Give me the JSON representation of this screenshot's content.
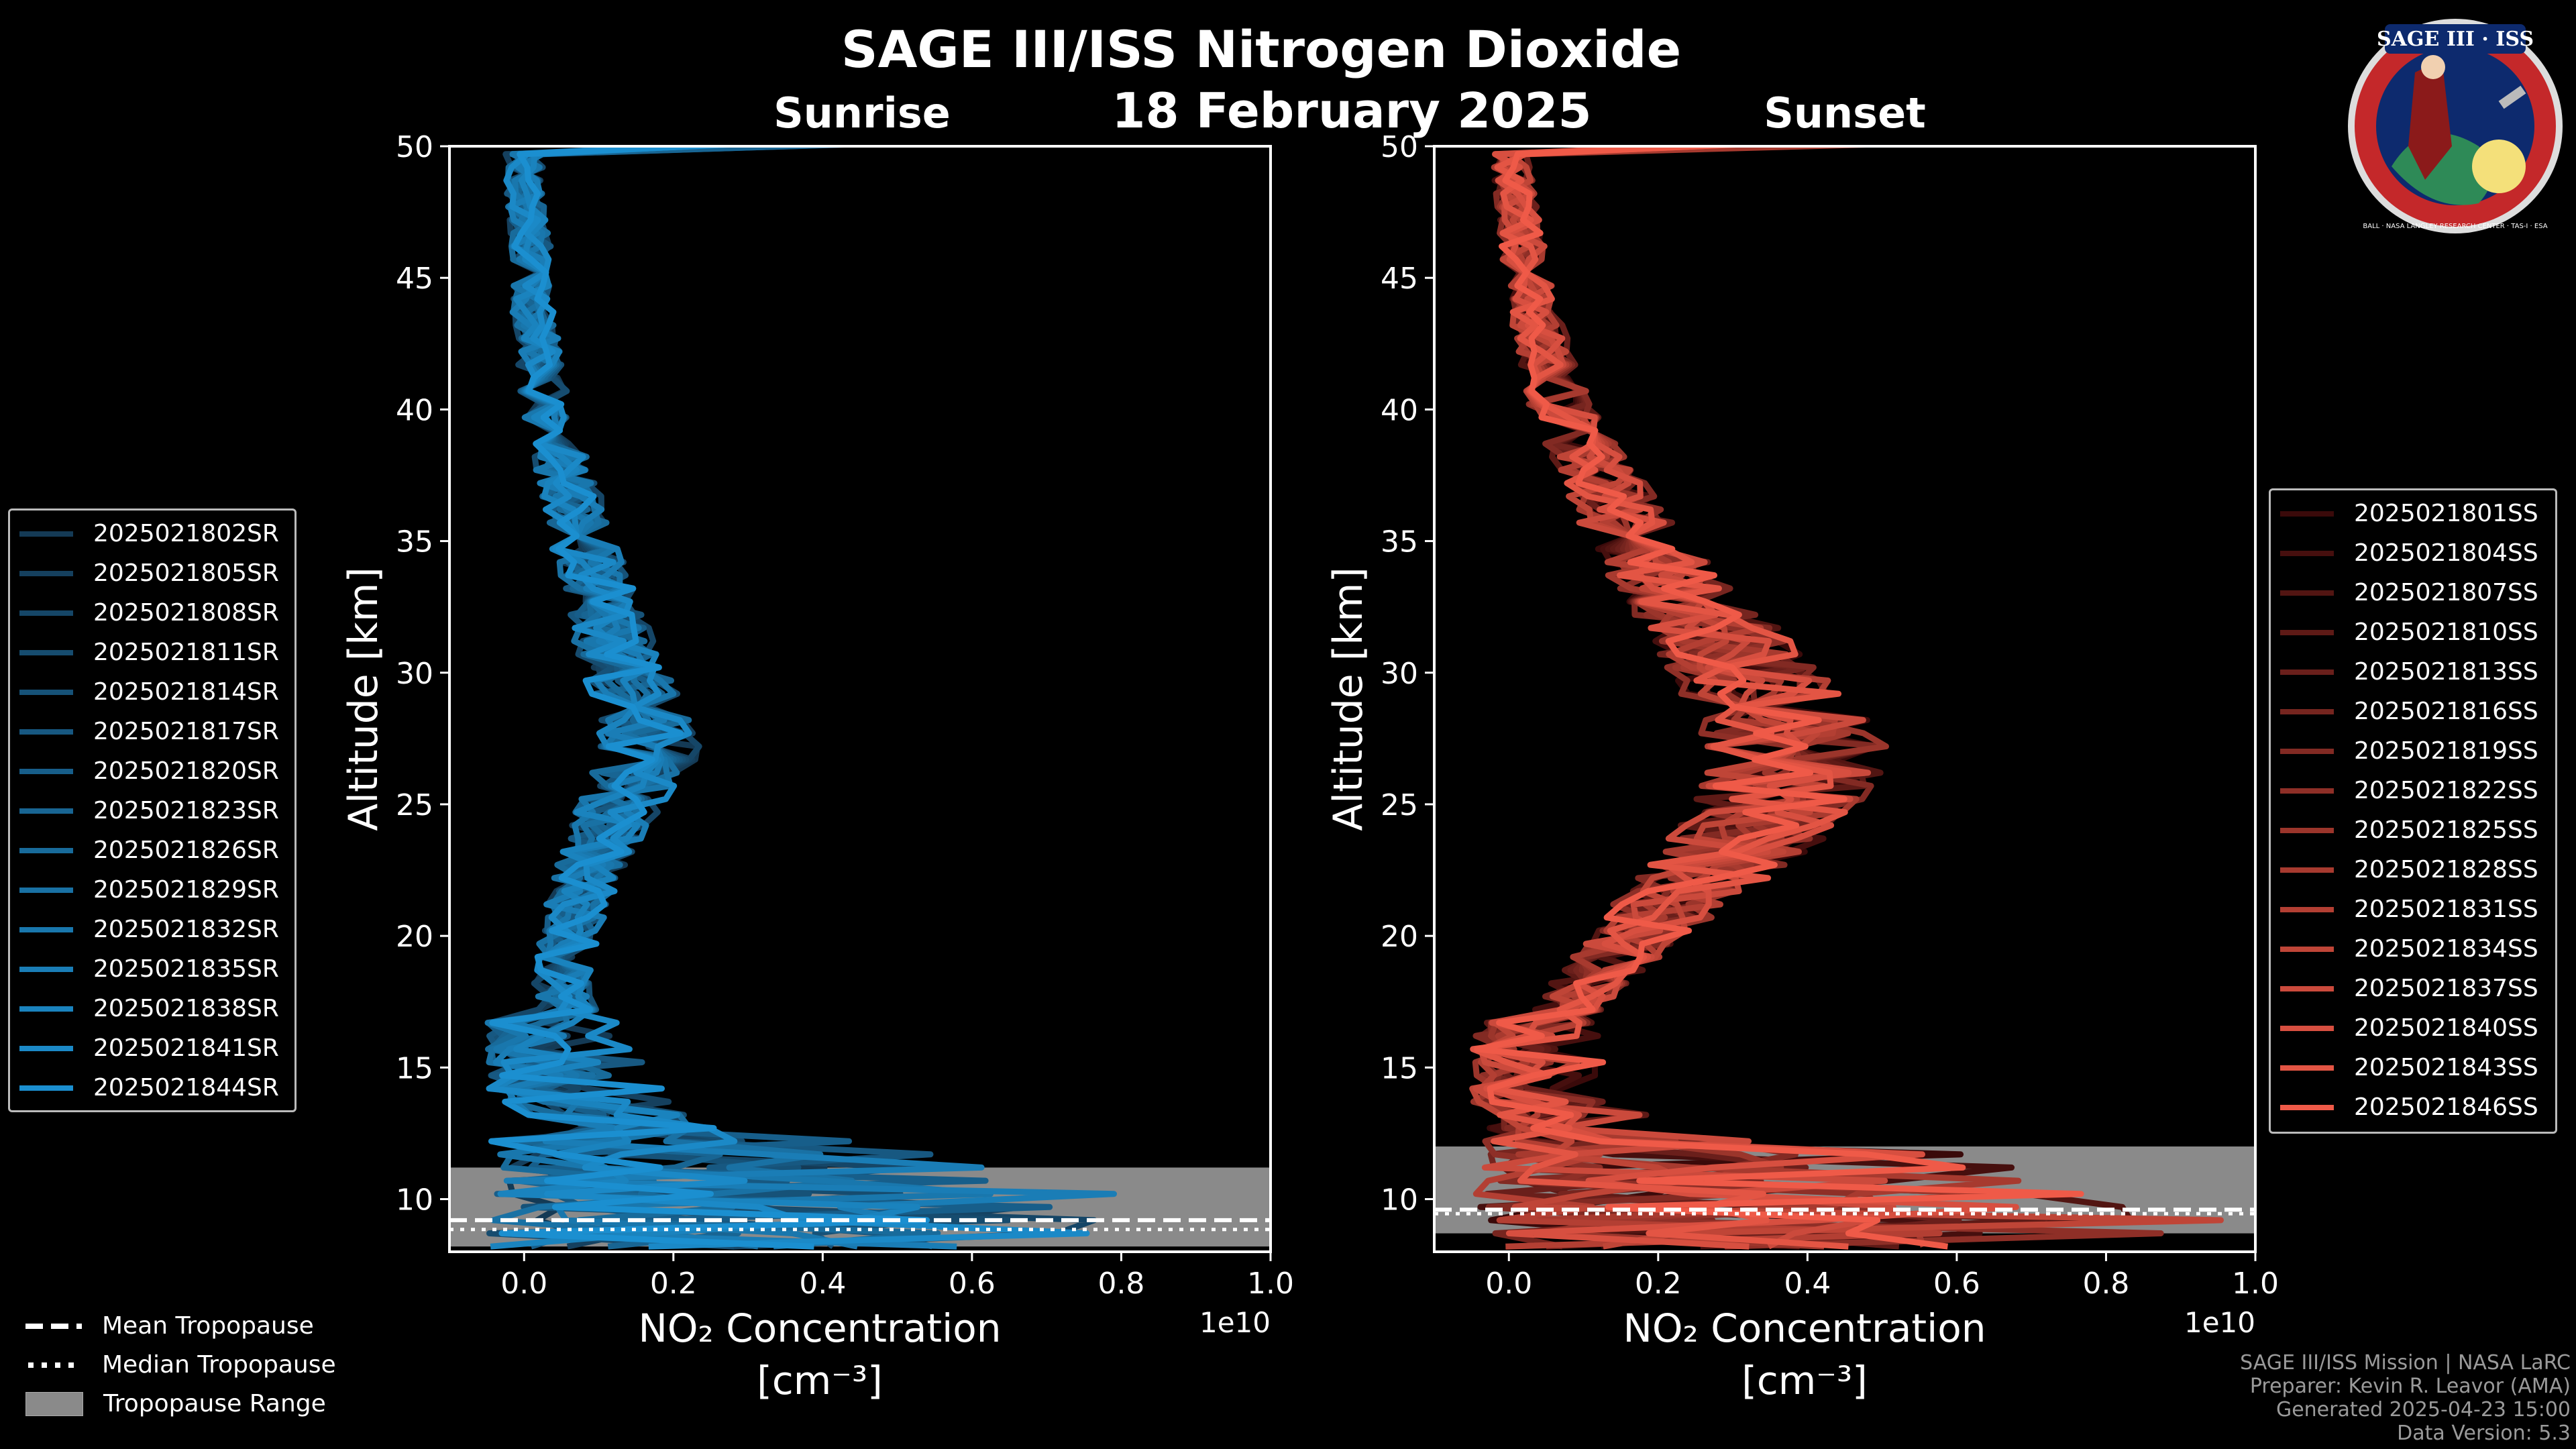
{
  "figure": {
    "title": "SAGE III/ISS Nitrogen Dioxide",
    "date": "18 February 2025",
    "logo_text": "SAGE III · ISS",
    "logo_ring_text": "BALL · NASA LANGLEY RESEARCH CENTER · TAS-I · ESA"
  },
  "credits": {
    "line1": "SAGE III/ISS Mission | NASA LaRC",
    "line2": "Preparer: Kevin R. Leavor (AMA)",
    "line3": "Generated 2025-04-23 15:00",
    "line4": "Data Version: 5.3"
  },
  "tropopause_legend": {
    "mean": "Mean Tropopause",
    "median": "Median Tropopause",
    "range": "Tropopause Range"
  },
  "colors": {
    "sunrise_light": "#1b8fd0",
    "sunrise_dark": "#143a55",
    "sunset_light": "#ef5a48",
    "sunset_dark": "#3a0a0a",
    "tropopause_range": "#8a8a8a"
  },
  "chart_data": [
    {
      "type": "line",
      "title": "Sunrise",
      "xlabel": "NO₂ Concentration",
      "xlabel_units": "[cm⁻³]",
      "ylabel": "Altitude [km]",
      "x_multiplier": "1e10",
      "xlim": [
        -0.1,
        1.0
      ],
      "ylim": [
        8,
        50
      ],
      "xticks": [
        "0.0",
        "0.2",
        "0.4",
        "0.6",
        "0.8",
        "1.0"
      ],
      "yticks": [
        "10",
        "15",
        "20",
        "25",
        "30",
        "35",
        "40",
        "45",
        "50"
      ],
      "tropopause": {
        "range_km": [
          8.2,
          11.2
        ],
        "mean_km": 9.2,
        "median_km": 9.0
      },
      "profile_altitude_km": [
        50,
        48,
        46,
        44,
        42,
        40,
        38,
        36,
        34,
        32,
        30,
        28,
        27,
        26,
        24,
        22,
        20,
        18,
        16,
        14,
        12,
        10,
        9
      ],
      "profile_mean_no2_1e10": [
        0.0,
        0.0,
        0.01,
        0.01,
        0.02,
        0.03,
        0.05,
        0.07,
        0.09,
        0.11,
        0.14,
        0.16,
        0.17,
        0.15,
        0.11,
        0.08,
        0.06,
        0.05,
        0.07,
        0.12,
        0.2,
        0.35,
        0.45
      ],
      "series": [
        {
          "name": "2025021802SR"
        },
        {
          "name": "2025021805SR"
        },
        {
          "name": "2025021808SR"
        },
        {
          "name": "2025021811SR"
        },
        {
          "name": "2025021814SR"
        },
        {
          "name": "2025021817SR"
        },
        {
          "name": "2025021820SR"
        },
        {
          "name": "2025021823SR"
        },
        {
          "name": "2025021826SR"
        },
        {
          "name": "2025021829SR"
        },
        {
          "name": "2025021832SR"
        },
        {
          "name": "2025021835SR"
        },
        {
          "name": "2025021838SR"
        },
        {
          "name": "2025021841SR"
        },
        {
          "name": "2025021844SR"
        }
      ]
    },
    {
      "type": "line",
      "title": "Sunset",
      "xlabel": "NO₂ Concentration",
      "xlabel_units": "[cm⁻³]",
      "ylabel": "Altitude [km]",
      "x_multiplier": "1e10",
      "xlim": [
        -0.1,
        1.0
      ],
      "ylim": [
        8,
        50
      ],
      "xticks": [
        "0.0",
        "0.2",
        "0.4",
        "0.6",
        "0.8",
        "1.0"
      ],
      "yticks": [
        "10",
        "15",
        "20",
        "25",
        "30",
        "35",
        "40",
        "45",
        "50"
      ],
      "tropopause": {
        "range_km": [
          8.7,
          12.0
        ],
        "mean_km": 9.6,
        "median_km": 9.6
      },
      "profile_altitude_km": [
        50,
        48,
        46,
        44,
        42,
        40,
        38,
        36,
        34,
        32,
        30,
        28,
        27,
        26,
        24,
        22,
        20,
        18,
        16,
        14,
        12,
        10,
        9
      ],
      "profile_mean_no2_1e10": [
        0.0,
        0.01,
        0.02,
        0.03,
        0.05,
        0.07,
        0.11,
        0.15,
        0.2,
        0.26,
        0.32,
        0.37,
        0.39,
        0.38,
        0.33,
        0.25,
        0.17,
        0.1,
        0.05,
        0.08,
        0.2,
        0.4,
        0.5
      ],
      "series": [
        {
          "name": "2025021801SS"
        },
        {
          "name": "2025021804SS"
        },
        {
          "name": "2025021807SS"
        },
        {
          "name": "2025021810SS"
        },
        {
          "name": "2025021813SS"
        },
        {
          "name": "2025021816SS"
        },
        {
          "name": "2025021819SS"
        },
        {
          "name": "2025021822SS"
        },
        {
          "name": "2025021825SS"
        },
        {
          "name": "2025021828SS"
        },
        {
          "name": "2025021831SS"
        },
        {
          "name": "2025021834SS"
        },
        {
          "name": "2025021837SS"
        },
        {
          "name": "2025021840SS"
        },
        {
          "name": "2025021843SS"
        },
        {
          "name": "2025021846SS"
        }
      ]
    }
  ]
}
